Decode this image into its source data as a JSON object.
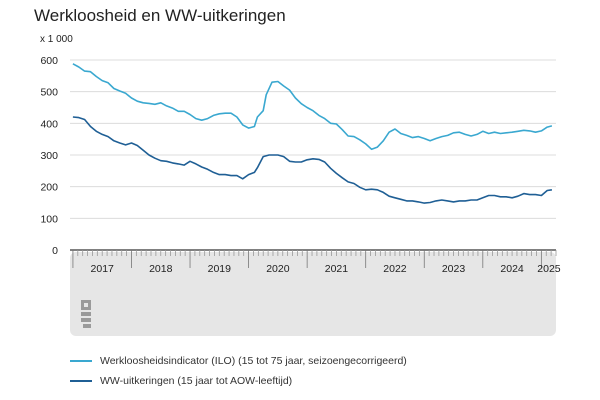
{
  "chart_data": {
    "type": "line",
    "title": "Werkloosheid en WW-uitkeringen",
    "unit_label": "x 1 000",
    "ylim": [
      0,
      600
    ],
    "y_ticks": [
      "0",
      "100",
      "200",
      "300",
      "400",
      "500",
      "600"
    ],
    "y_tick_values": [
      0,
      100,
      200,
      300,
      400,
      500,
      600
    ],
    "x_start": 2016.95,
    "x_end": 2025.25,
    "x_year_labels": [
      {
        "label": "2017",
        "value": 2017
      },
      {
        "label": "2018",
        "value": 2018
      },
      {
        "label": "2019",
        "value": 2019
      },
      {
        "label": "2020",
        "value": 2020
      },
      {
        "label": "2021",
        "value": 2021
      },
      {
        "label": "2022",
        "value": 2022
      },
      {
        "label": "2023",
        "value": 2023
      },
      {
        "label": "2024",
        "value": 2024
      },
      {
        "label": "2025",
        "value": 2025
      }
    ],
    "grid": true,
    "legend_position": "bottom",
    "series": [
      {
        "name": "Werkloosheidsindicator (ILO) (15 tot 75 jaar, seizoengecorrigeerd)",
        "color": "#3aa8d0",
        "points": [
          [
            2017.0,
            588
          ],
          [
            2017.1,
            578
          ],
          [
            2017.2,
            565
          ],
          [
            2017.3,
            563
          ],
          [
            2017.4,
            548
          ],
          [
            2017.5,
            535
          ],
          [
            2017.6,
            528
          ],
          [
            2017.7,
            510
          ],
          [
            2017.8,
            502
          ],
          [
            2017.9,
            495
          ],
          [
            2018.0,
            480
          ],
          [
            2018.1,
            470
          ],
          [
            2018.2,
            465
          ],
          [
            2018.3,
            463
          ],
          [
            2018.4,
            460
          ],
          [
            2018.5,
            465
          ],
          [
            2018.6,
            455
          ],
          [
            2018.7,
            448
          ],
          [
            2018.8,
            438
          ],
          [
            2018.9,
            438
          ],
          [
            2019.0,
            428
          ],
          [
            2019.1,
            415
          ],
          [
            2019.2,
            410
          ],
          [
            2019.3,
            415
          ],
          [
            2019.4,
            425
          ],
          [
            2019.5,
            430
          ],
          [
            2019.6,
            432
          ],
          [
            2019.7,
            432
          ],
          [
            2019.8,
            420
          ],
          [
            2019.9,
            395
          ],
          [
            2020.0,
            385
          ],
          [
            2020.1,
            390
          ],
          [
            2020.15,
            420
          ],
          [
            2020.25,
            440
          ],
          [
            2020.3,
            490
          ],
          [
            2020.4,
            530
          ],
          [
            2020.5,
            532
          ],
          [
            2020.6,
            518
          ],
          [
            2020.7,
            505
          ],
          [
            2020.8,
            480
          ],
          [
            2020.9,
            462
          ],
          [
            2021.0,
            450
          ],
          [
            2021.1,
            440
          ],
          [
            2021.2,
            425
          ],
          [
            2021.3,
            415
          ],
          [
            2021.4,
            400
          ],
          [
            2021.5,
            398
          ],
          [
            2021.6,
            380
          ],
          [
            2021.7,
            360
          ],
          [
            2021.8,
            358
          ],
          [
            2021.9,
            348
          ],
          [
            2022.0,
            335
          ],
          [
            2022.1,
            318
          ],
          [
            2022.2,
            325
          ],
          [
            2022.3,
            345
          ],
          [
            2022.4,
            372
          ],
          [
            2022.5,
            382
          ],
          [
            2022.6,
            368
          ],
          [
            2022.7,
            362
          ],
          [
            2022.8,
            355
          ],
          [
            2022.9,
            358
          ],
          [
            2023.0,
            352
          ],
          [
            2023.1,
            345
          ],
          [
            2023.2,
            352
          ],
          [
            2023.3,
            358
          ],
          [
            2023.4,
            362
          ],
          [
            2023.5,
            370
          ],
          [
            2023.6,
            372
          ],
          [
            2023.7,
            365
          ],
          [
            2023.8,
            360
          ],
          [
            2023.9,
            365
          ],
          [
            2024.0,
            375
          ],
          [
            2024.1,
            368
          ],
          [
            2024.2,
            372
          ],
          [
            2024.3,
            368
          ],
          [
            2024.4,
            370
          ],
          [
            2024.5,
            372
          ],
          [
            2024.6,
            375
          ],
          [
            2024.7,
            378
          ],
          [
            2024.8,
            376
          ],
          [
            2024.9,
            372
          ],
          [
            2025.0,
            376
          ],
          [
            2025.1,
            388
          ],
          [
            2025.18,
            392
          ]
        ]
      },
      {
        "name": "WW-uitkeringen (15 jaar tot AOW-leeftijd)",
        "color": "#1f5f95",
        "points": [
          [
            2017.0,
            420
          ],
          [
            2017.1,
            418
          ],
          [
            2017.2,
            412
          ],
          [
            2017.3,
            390
          ],
          [
            2017.4,
            375
          ],
          [
            2017.5,
            365
          ],
          [
            2017.6,
            358
          ],
          [
            2017.7,
            345
          ],
          [
            2017.8,
            338
          ],
          [
            2017.9,
            332
          ],
          [
            2018.0,
            338
          ],
          [
            2018.1,
            330
          ],
          [
            2018.2,
            315
          ],
          [
            2018.3,
            300
          ],
          [
            2018.4,
            290
          ],
          [
            2018.5,
            282
          ],
          [
            2018.6,
            280
          ],
          [
            2018.7,
            275
          ],
          [
            2018.8,
            272
          ],
          [
            2018.9,
            268
          ],
          [
            2019.0,
            280
          ],
          [
            2019.1,
            272
          ],
          [
            2019.2,
            262
          ],
          [
            2019.3,
            255
          ],
          [
            2019.4,
            245
          ],
          [
            2019.5,
            238
          ],
          [
            2019.6,
            238
          ],
          [
            2019.7,
            235
          ],
          [
            2019.8,
            235
          ],
          [
            2019.9,
            225
          ],
          [
            2020.0,
            238
          ],
          [
            2020.1,
            245
          ],
          [
            2020.15,
            260
          ],
          [
            2020.25,
            295
          ],
          [
            2020.35,
            300
          ],
          [
            2020.5,
            300
          ],
          [
            2020.6,
            295
          ],
          [
            2020.7,
            280
          ],
          [
            2020.8,
            278
          ],
          [
            2020.9,
            278
          ],
          [
            2021.0,
            285
          ],
          [
            2021.1,
            288
          ],
          [
            2021.2,
            286
          ],
          [
            2021.3,
            278
          ],
          [
            2021.4,
            258
          ],
          [
            2021.5,
            242
          ],
          [
            2021.6,
            228
          ],
          [
            2021.7,
            215
          ],
          [
            2021.8,
            210
          ],
          [
            2021.9,
            198
          ],
          [
            2022.0,
            190
          ],
          [
            2022.1,
            192
          ],
          [
            2022.2,
            190
          ],
          [
            2022.3,
            182
          ],
          [
            2022.4,
            170
          ],
          [
            2022.5,
            165
          ],
          [
            2022.6,
            160
          ],
          [
            2022.7,
            155
          ],
          [
            2022.8,
            155
          ],
          [
            2022.9,
            152
          ],
          [
            2023.0,
            148
          ],
          [
            2023.1,
            150
          ],
          [
            2023.2,
            155
          ],
          [
            2023.3,
            158
          ],
          [
            2023.4,
            155
          ],
          [
            2023.5,
            152
          ],
          [
            2023.6,
            155
          ],
          [
            2023.7,
            155
          ],
          [
            2023.8,
            158
          ],
          [
            2023.9,
            158
          ],
          [
            2024.0,
            165
          ],
          [
            2024.1,
            172
          ],
          [
            2024.2,
            172
          ],
          [
            2024.3,
            168
          ],
          [
            2024.4,
            168
          ],
          [
            2024.5,
            165
          ],
          [
            2024.6,
            170
          ],
          [
            2024.7,
            178
          ],
          [
            2024.8,
            175
          ],
          [
            2024.9,
            175
          ],
          [
            2025.0,
            172
          ],
          [
            2025.1,
            188
          ],
          [
            2025.18,
            190
          ]
        ]
      }
    ]
  }
}
